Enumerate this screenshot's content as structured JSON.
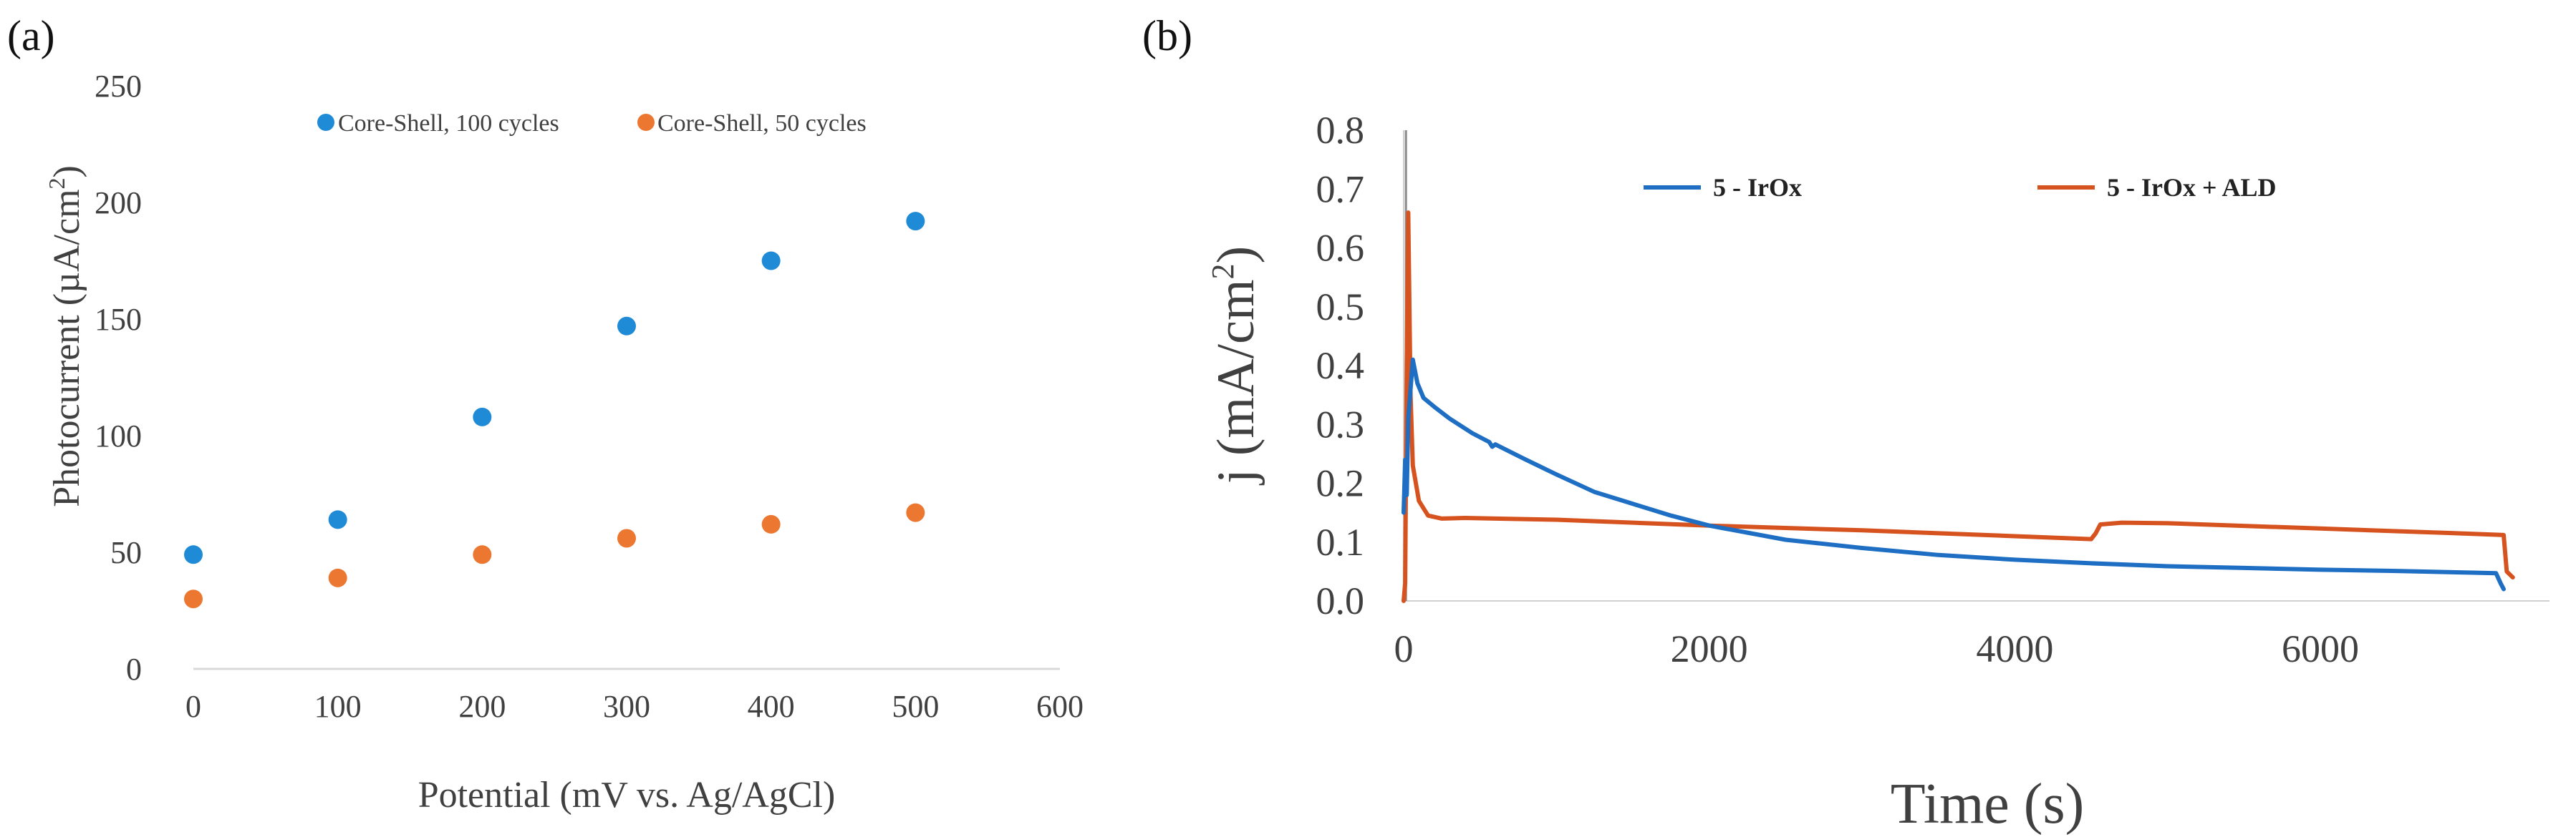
{
  "chart_data": [
    {
      "panel_label": "(a)",
      "type": "scatter",
      "title": "",
      "xlabel": "Potential (mV vs. Ag/AgCl)",
      "ylabel_main": "Photocurrent  (µA/cm",
      "ylabel_sup": "2",
      "ylabel_close": ")",
      "xlim": [
        0,
        600
      ],
      "ylim": [
        0,
        250
      ],
      "xticks": [
        0,
        100,
        200,
        300,
        400,
        500,
        600
      ],
      "yticks": [
        0,
        50,
        100,
        150,
        200,
        250
      ],
      "grid": false,
      "legend_position": "top",
      "series": [
        {
          "name": "Core-Shell, 100 cycles",
          "color": "#1f8ad6",
          "x": [
            0,
            100,
            200,
            300,
            400,
            500
          ],
          "y": [
            49,
            64,
            108,
            147,
            175,
            192
          ]
        },
        {
          "name": "Core-Shell, 50 cycles",
          "color": "#ec7730",
          "x": [
            0,
            100,
            200,
            300,
            400,
            500
          ],
          "y": [
            30,
            39,
            49,
            56,
            62,
            67
          ]
        }
      ]
    },
    {
      "panel_label": "(b)",
      "type": "line",
      "title": "",
      "xlabel": "Time (s)",
      "ylabel_main": "j (mA/cm",
      "ylabel_sup": "2",
      "ylabel_close": ")",
      "xlim": [
        0,
        7500
      ],
      "ylim": [
        0,
        0.8
      ],
      "xticks": [
        0,
        2000,
        4000,
        6000
      ],
      "yticks": [
        "0.0",
        "0.1",
        "0.2",
        "0.3",
        "0.4",
        "0.5",
        "0.6",
        "0.7",
        "0.8"
      ],
      "grid": false,
      "legend_position": "top",
      "series": [
        {
          "name": "5 - IrOx",
          "color": "#1e6fc4",
          "x": [
            0,
            10,
            20,
            30,
            60,
            90,
            130,
            200,
            300,
            450,
            560,
            580,
            600,
            800,
            1000,
            1250,
            1500,
            1750,
            2000,
            2500,
            3000,
            3500,
            4000,
            4500,
            5000,
            5500,
            6000,
            6500,
            7000,
            7150,
            7180,
            7200
          ],
          "y": [
            0.15,
            0.24,
            0.18,
            0.31,
            0.41,
            0.37,
            0.345,
            0.33,
            0.31,
            0.285,
            0.27,
            0.262,
            0.266,
            0.24,
            0.215,
            0.185,
            0.165,
            0.145,
            0.128,
            0.104,
            0.09,
            0.078,
            0.07,
            0.064,
            0.059,
            0.056,
            0.053,
            0.051,
            0.048,
            0.047,
            0.03,
            0.02
          ]
        },
        {
          "name": "5 - IrOx + ALD",
          "color": "#d6531f",
          "x": [
            0,
            10,
            20,
            30,
            45,
            60,
            100,
            160,
            250,
            400,
            600,
            1000,
            2000,
            3000,
            4000,
            4500,
            4530,
            4560,
            4700,
            5000,
            6000,
            7000,
            7200,
            7220,
            7260
          ],
          "y": [
            0.0,
            0.03,
            0.4,
            0.66,
            0.35,
            0.23,
            0.17,
            0.145,
            0.14,
            0.141,
            0.14,
            0.138,
            0.128,
            0.12,
            0.11,
            0.105,
            0.115,
            0.13,
            0.133,
            0.132,
            0.123,
            0.114,
            0.112,
            0.05,
            0.04
          ]
        }
      ],
      "annotation": {
        "name": "initial spike",
        "color": "#8a8a8a",
        "x": [
          15,
          15
        ],
        "y": [
          0.0,
          0.8
        ]
      }
    }
  ]
}
